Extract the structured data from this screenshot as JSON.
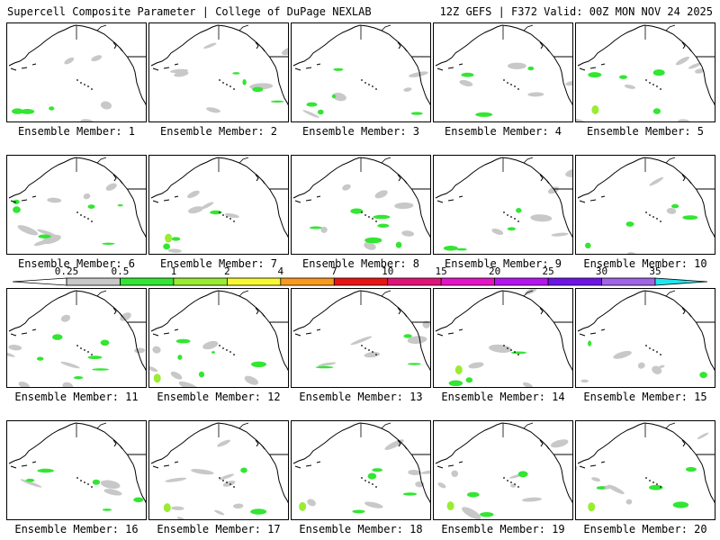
{
  "header": {
    "left_title": "Supercell Composite Parameter | College of DuPage NEXLAB",
    "right_title": "12Z GEFS | F372 Valid: 00Z MON NOV 24 2025"
  },
  "member_prefix": "Ensemble Member:",
  "members": [
    {
      "id": 1,
      "label": "Ensemble Member: 1"
    },
    {
      "id": 2,
      "label": "Ensemble Member: 2"
    },
    {
      "id": 3,
      "label": "Ensemble Member: 3"
    },
    {
      "id": 4,
      "label": "Ensemble Member: 4"
    },
    {
      "id": 5,
      "label": "Ensemble Member: 5"
    },
    {
      "id": 6,
      "label": "Ensemble Member: 6"
    },
    {
      "id": 7,
      "label": "Ensemble Member: 7"
    },
    {
      "id": 8,
      "label": "Ensemble Member: 8"
    },
    {
      "id": 9,
      "label": "Ensemble Member: 9"
    },
    {
      "id": 10,
      "label": "Ensemble Member: 10"
    },
    {
      "id": 11,
      "label": "Ensemble Member: 11"
    },
    {
      "id": 12,
      "label": "Ensemble Member: 12"
    },
    {
      "id": 13,
      "label": "Ensemble Member: 13"
    },
    {
      "id": 14,
      "label": "Ensemble Member: 14"
    },
    {
      "id": 15,
      "label": "Ensemble Member: 15"
    },
    {
      "id": 16,
      "label": "Ensemble Member: 16"
    },
    {
      "id": 17,
      "label": "Ensemble Member: 17"
    },
    {
      "id": 18,
      "label": "Ensemble Member: 18"
    },
    {
      "id": 19,
      "label": "Ensemble Member: 19"
    },
    {
      "id": 20,
      "label": "Ensemble Member: 20"
    }
  ],
  "colorbar": {
    "labels": [
      "0.25",
      "0.5",
      "1",
      "2",
      "4",
      "7",
      "10",
      "15",
      "20",
      "25",
      "30",
      "35"
    ],
    "colors": [
      "#c8c8c8",
      "#32e632",
      "#9aec32",
      "#f8f832",
      "#f89a1e",
      "#e81414",
      "#e01478",
      "#e614c8",
      "#b414f0",
      "#6e14e6",
      "#a064e6",
      "#20e6f0"
    ]
  },
  "colors": {
    "low": "#c8c8c8",
    "green": "#32e632",
    "lime": "#9aec32",
    "yellow": "#f8f832"
  }
}
